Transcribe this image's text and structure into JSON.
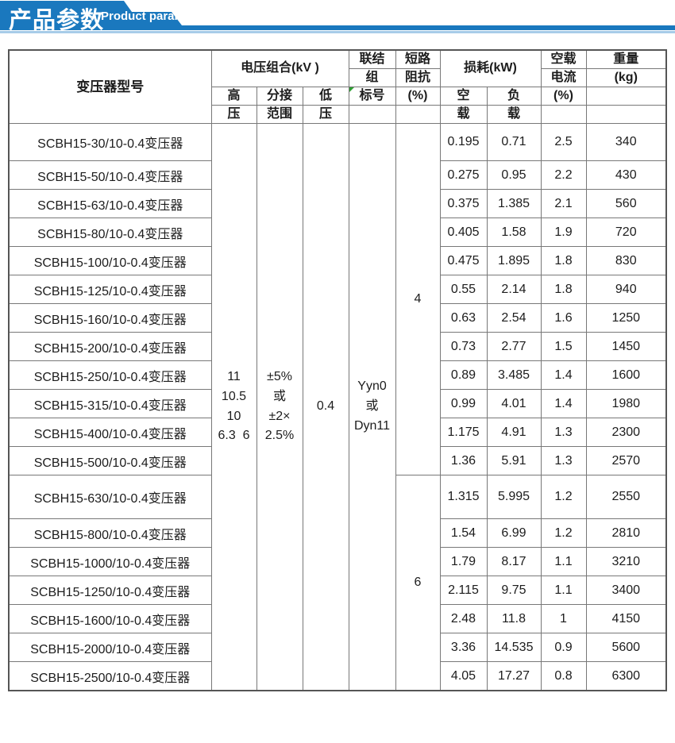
{
  "banner": {
    "title_cn": "产品参数",
    "title_en": "Product parameters",
    "bg_color": "#1a78be",
    "underline_color": "#a7cce8"
  },
  "table": {
    "header": {
      "model": "变压器型号",
      "voltage_group": "电压组合(kV )",
      "hv_line1": "高",
      "hv_line2": "压",
      "tap_line1": "分接",
      "tap_line2": "范围",
      "lv_line1": "低",
      "lv_line2": "压",
      "vector_line1": "联结",
      "vector_line2": "组",
      "vector_line3": "标号",
      "impedance_line1": "短路",
      "impedance_line2": "阻抗",
      "impedance_line3": "(%)",
      "loss": "损耗(kW)",
      "no_load_line1": "空",
      "no_load_line2": "载",
      "load_line1": "负",
      "load_line2": "载",
      "current_line1": "空载",
      "current_line2": "电流",
      "current_line3": "(%)",
      "weight_line1": "重量",
      "weight_line2": "(kg)"
    },
    "merged": {
      "hv_lines": [
        "11",
        "10.5",
        "10",
        "6.3  6"
      ],
      "tap_lines": [
        "±5%",
        "或",
        "±2×",
        "2.5%"
      ],
      "lv": "0.4",
      "vector_lines": [
        "Yyn0",
        "或",
        "Dyn11"
      ],
      "impedance_groups": [
        {
          "value": "4",
          "row_count": 12
        },
        {
          "value": "6",
          "row_count": 7
        }
      ]
    },
    "rows": [
      {
        "model": "SCBH15-30/10-0.4变压器",
        "no_load": "0.195",
        "load": "0.71",
        "current": "2.5",
        "weight": "340"
      },
      {
        "model": "SCBH15-50/10-0.4变压器",
        "no_load": "0.275",
        "load": "0.95",
        "current": "2.2",
        "weight": "430"
      },
      {
        "model": "SCBH15-63/10-0.4变压器",
        "no_load": "0.375",
        "load": "1.385",
        "current": "2.1",
        "weight": "560"
      },
      {
        "model": "SCBH15-80/10-0.4变压器",
        "no_load": "0.405",
        "load": "1.58",
        "current": "1.9",
        "weight": "720"
      },
      {
        "model": "SCBH15-100/10-0.4变压器",
        "no_load": "0.475",
        "load": "1.895",
        "current": "1.8",
        "weight": "830"
      },
      {
        "model": "SCBH15-125/10-0.4变压器",
        "no_load": "0.55",
        "load": "2.14",
        "current": "1.8",
        "weight": "940"
      },
      {
        "model": "SCBH15-160/10-0.4变压器",
        "no_load": "0.63",
        "load": "2.54",
        "current": "1.6",
        "weight": "1250"
      },
      {
        "model": "SCBH15-200/10-0.4变压器",
        "no_load": "0.73",
        "load": "2.77",
        "current": "1.5",
        "weight": "1450"
      },
      {
        "model": "SCBH15-250/10-0.4变压器",
        "no_load": "0.89",
        "load": "3.485",
        "current": "1.4",
        "weight": "1600"
      },
      {
        "model": "SCBH15-315/10-0.4变压器",
        "no_load": "0.99",
        "load": "4.01",
        "current": "1.4",
        "weight": "1980"
      },
      {
        "model": "SCBH15-400/10-0.4变压器",
        "no_load": "1.175",
        "load": "4.91",
        "current": "1.3",
        "weight": "2300"
      },
      {
        "model": "SCBH15-500/10-0.4变压器",
        "no_load": "1.36",
        "load": "5.91",
        "current": "1.3",
        "weight": "2570"
      },
      {
        "model": "SCBH15-630/10-0.4变压器",
        "no_load": "1.315",
        "load": "5.995",
        "current": "1.2",
        "weight": "2550"
      },
      {
        "model": "SCBH15-800/10-0.4变压器",
        "no_load": "1.54",
        "load": "6.99",
        "current": "1.2",
        "weight": "2810"
      },
      {
        "model": "SCBH15-1000/10-0.4变压器",
        "no_load": "1.79",
        "load": "8.17",
        "current": "1.1",
        "weight": "3210"
      },
      {
        "model": "SCBH15-1250/10-0.4变压器",
        "no_load": "2.115",
        "load": "9.75",
        "current": "1.1",
        "weight": "3400"
      },
      {
        "model": "SCBH15-1600/10-0.4变压器",
        "no_load": "2.48",
        "load": "11.8",
        "current": "1",
        "weight": "4150"
      },
      {
        "model": "SCBH15-2000/10-0.4变压器",
        "no_load": "3.36",
        "load": "14.535",
        "current": "0.9",
        "weight": "5600"
      },
      {
        "model": "SCBH15-2500/10-0.4变压器",
        "no_load": "4.05",
        "load": "17.27",
        "current": "0.8",
        "weight": "6300"
      }
    ]
  }
}
